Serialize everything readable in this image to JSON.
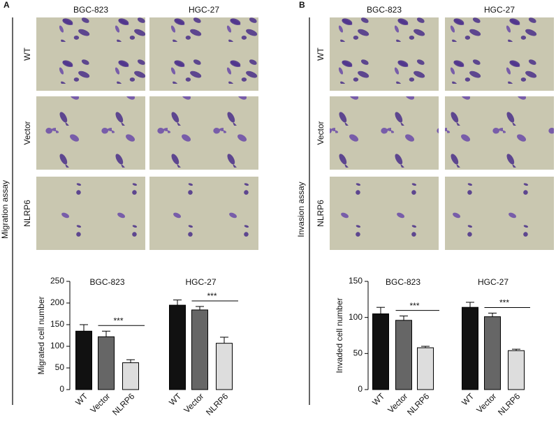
{
  "panels": [
    {
      "label": "A",
      "assay": "Migration assay",
      "columns": [
        "BGC-823",
        "HGC-27"
      ],
      "rows": [
        "WT",
        "Vector",
        "NLRP6"
      ]
    },
    {
      "label": "B",
      "assay": "Invasion assay",
      "columns": [
        "BGC-823",
        "HGC-27"
      ],
      "rows": [
        "WT",
        "Vector",
        "NLRP6"
      ]
    }
  ],
  "chart_data": [
    {
      "type": "bar",
      "ylabel": "Migrated cell number",
      "categories": [
        "WT",
        "Vector",
        "NLRP6"
      ],
      "colors": [
        "#111111",
        "#666666",
        "#dddddd"
      ],
      "ylim": [
        0,
        250
      ],
      "yticks": [
        0,
        50,
        100,
        150,
        200,
        250
      ],
      "series": [
        {
          "name": "BGC-823",
          "values": [
            135,
            122,
            62
          ],
          "errors": [
            15,
            13,
            7
          ],
          "significance": "***"
        },
        {
          "name": "HGC-27",
          "values": [
            195,
            184,
            107
          ],
          "errors": [
            12,
            8,
            14
          ],
          "significance": "***"
        }
      ]
    },
    {
      "type": "bar",
      "ylabel": "Invaded cell number",
      "categories": [
        "WT",
        "Vector",
        "NLRP6"
      ],
      "colors": [
        "#111111",
        "#666666",
        "#dddddd"
      ],
      "ylim": [
        0,
        150
      ],
      "yticks": [
        0,
        50,
        100,
        150
      ],
      "series": [
        {
          "name": "BGC-823",
          "values": [
            105,
            96,
            58
          ],
          "errors": [
            9,
            6,
            2
          ],
          "significance": "***"
        },
        {
          "name": "HGC-27",
          "values": [
            114,
            101,
            54
          ],
          "errors": [
            7,
            5,
            2
          ],
          "significance": "***"
        }
      ]
    }
  ]
}
